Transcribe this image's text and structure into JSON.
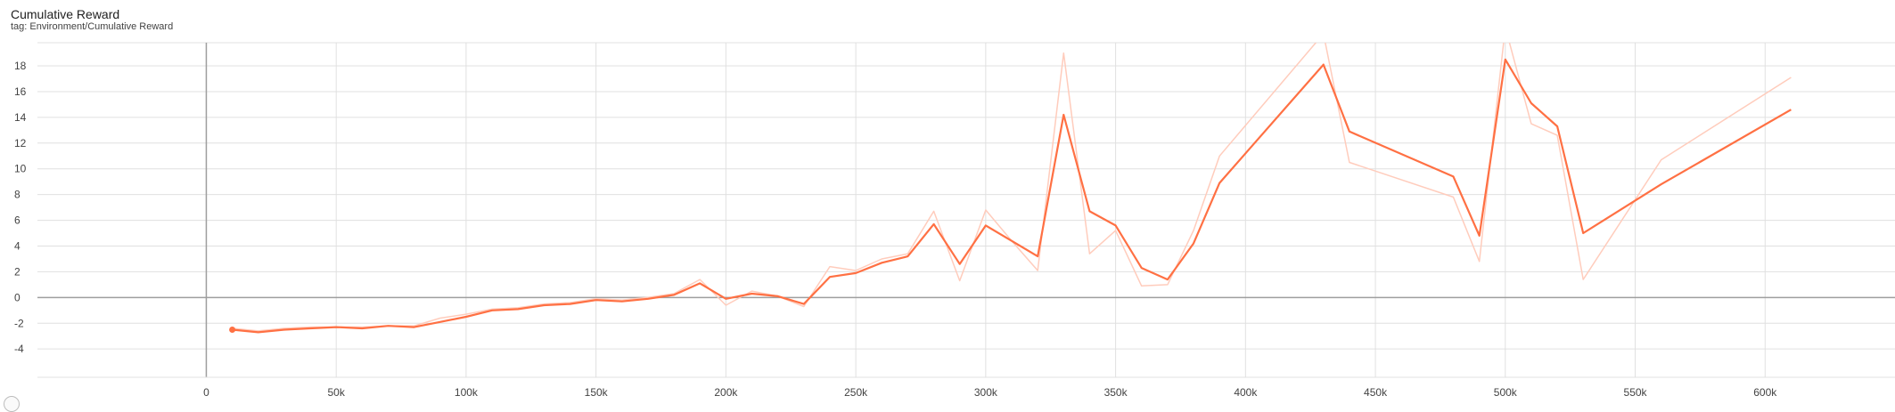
{
  "card": {
    "title": "Cumulative Reward",
    "tag": "tag: Environment/Cumulative Reward"
  },
  "colors": {
    "smoothed": "#ff7043",
    "raw": "#ffccbc",
    "grid": "#e0e0e0",
    "axis": "#9e9e9e"
  },
  "chart_data": {
    "type": "line",
    "title": "Cumulative Reward",
    "xlabel": "",
    "ylabel": "",
    "xlim": [
      -65000,
      650000
    ],
    "ylim": [
      -6.2,
      19.8
    ],
    "grid": true,
    "x_ticks": [
      0,
      50000,
      100000,
      150000,
      200000,
      250000,
      300000,
      350000,
      400000,
      450000,
      500000,
      550000,
      600000
    ],
    "x_tick_labels": [
      "0",
      "50k",
      "100k",
      "150k",
      "200k",
      "250k",
      "300k",
      "350k",
      "400k",
      "450k",
      "500k",
      "550k",
      "600k"
    ],
    "y_ticks": [
      -4,
      -2,
      0,
      2,
      4,
      6,
      8,
      10,
      12,
      14,
      16,
      18
    ],
    "y_tick_labels": [
      "-4",
      "-2",
      "0",
      "2",
      "4",
      "6",
      "8",
      "10",
      "12",
      "14",
      "16",
      "18"
    ],
    "series": [
      {
        "style": "raw",
        "x": [
          10000,
          20000,
          30000,
          40000,
          50000,
          60000,
          70000,
          80000,
          90000,
          100000,
          110000,
          120000,
          130000,
          140000,
          150000,
          160000,
          170000,
          180000,
          190000,
          200000,
          210000,
          220000,
          230000,
          240000,
          250000,
          260000,
          270000,
          280000,
          290000,
          300000,
          310000,
          320000,
          330000,
          340000,
          350000,
          360000,
          370000,
          380000,
          390000,
          430000,
          440000,
          480000,
          490000,
          500000,
          510000,
          520000,
          530000,
          560000,
          610000
        ],
        "y": [
          -2.4,
          -2.6,
          -2.4,
          -2.3,
          -2.3,
          -2.3,
          -2.2,
          -2.2,
          -1.6,
          -1.3,
          -0.9,
          -0.8,
          -0.5,
          -0.4,
          -0.1,
          -0.2,
          0.0,
          0.3,
          1.4,
          -0.6,
          0.5,
          0.1,
          -0.7,
          2.4,
          2.1,
          3.0,
          3.4,
          6.7,
          1.3,
          6.8,
          4.4,
          2.1,
          19.0,
          3.4,
          5.2,
          0.9,
          1.0,
          5.2,
          11.0,
          20.5,
          10.5,
          7.8,
          2.8,
          21.0,
          13.5,
          12.6,
          1.4,
          10.7,
          17.1
        ]
      },
      {
        "style": "smoothed",
        "x": [
          10000,
          20000,
          30000,
          40000,
          50000,
          60000,
          70000,
          80000,
          90000,
          100000,
          110000,
          120000,
          130000,
          140000,
          150000,
          160000,
          170000,
          180000,
          190000,
          200000,
          210000,
          220000,
          230000,
          240000,
          250000,
          260000,
          270000,
          280000,
          290000,
          300000,
          310000,
          320000,
          330000,
          340000,
          350000,
          360000,
          370000,
          380000,
          390000,
          430000,
          440000,
          480000,
          490000,
          500000,
          510000,
          520000,
          530000,
          560000,
          610000
        ],
        "y": [
          -2.5,
          -2.7,
          -2.5,
          -2.4,
          -2.3,
          -2.4,
          -2.2,
          -2.3,
          -1.9,
          -1.5,
          -1.0,
          -0.9,
          -0.6,
          -0.5,
          -0.2,
          -0.3,
          -0.1,
          0.2,
          1.1,
          -0.1,
          0.3,
          0.1,
          -0.5,
          1.6,
          1.9,
          2.7,
          3.2,
          5.7,
          2.6,
          5.6,
          4.4,
          3.2,
          14.2,
          6.7,
          5.6,
          2.3,
          1.4,
          4.2,
          8.9,
          18.1,
          12.9,
          9.4,
          4.8,
          18.5,
          15.1,
          13.3,
          5.0,
          8.8,
          14.6
        ]
      }
    ]
  }
}
